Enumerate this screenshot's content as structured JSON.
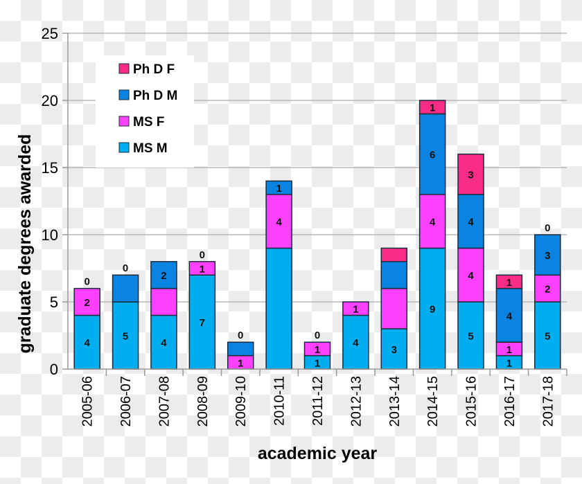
{
  "chart_data": {
    "type": "bar",
    "stacked": true,
    "title": "",
    "xlabel": "academic year",
    "ylabel": "graduate degrees awarded",
    "ylim": [
      0,
      25
    ],
    "yticks": [
      0,
      5,
      10,
      15,
      20,
      25
    ],
    "grid": true,
    "legend_position": "top-left",
    "categories": [
      "2005-06",
      "2006-07",
      "2007-08",
      "2008-09",
      "2009-10",
      "2010-11",
      "2011-12",
      "2012-13",
      "2013-14",
      "2014-15",
      "2015-16",
      "2016-17",
      "2017-18"
    ],
    "series": [
      {
        "name": "MS M",
        "color": "#00AEEF",
        "values": [
          4,
          5,
          4,
          7,
          0,
          9,
          1,
          4,
          3,
          9,
          5,
          1,
          5
        ],
        "labels": [
          "4",
          "5",
          "4",
          "7",
          "0",
          null,
          "1",
          "4",
          "3",
          "9",
          "5",
          "1",
          "5"
        ]
      },
      {
        "name": "MS F",
        "color": "#FF40FF",
        "values": [
          2,
          0,
          2,
          1,
          1,
          4,
          1,
          1,
          3,
          4,
          4,
          1,
          2
        ],
        "labels": [
          "2",
          "0",
          null,
          "1",
          "1",
          "4",
          "1",
          "1",
          null,
          "4",
          "4",
          "1",
          "2"
        ]
      },
      {
        "name": "Ph D M",
        "color": "#0A84E0",
        "values": [
          0,
          2,
          2,
          0,
          1,
          1,
          0,
          0,
          2,
          6,
          4,
          4,
          3
        ],
        "labels": [
          "0",
          null,
          "2",
          "0",
          null,
          "1",
          "0",
          null,
          null,
          "6",
          "4",
          "4",
          "3"
        ]
      },
      {
        "name": "Ph D F",
        "color": "#F72C85",
        "values": [
          0,
          0,
          0,
          0,
          0,
          0,
          0,
          0,
          1,
          1,
          3,
          1,
          0
        ],
        "labels": [
          null,
          null,
          null,
          null,
          null,
          null,
          null,
          null,
          null,
          "1",
          "3",
          "1",
          "0"
        ]
      }
    ],
    "legend_order": [
      "Ph D F",
      "Ph D M",
      "MS F",
      "MS M"
    ]
  }
}
